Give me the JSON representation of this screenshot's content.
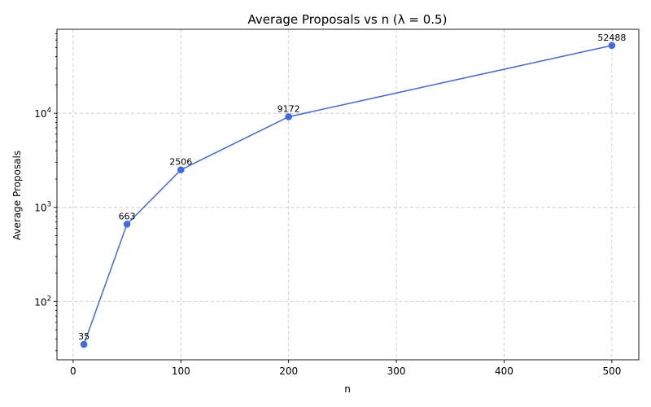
{
  "chart_data": {
    "type": "line",
    "title": "Average Proposals vs n (λ = 0.5)",
    "xlabel": "n",
    "ylabel": "Average Proposals",
    "y_scale": "log",
    "x": [
      10,
      50,
      100,
      200,
      500
    ],
    "series": [
      {
        "values": [
          35,
          663,
          2506,
          9172,
          52488
        ],
        "labels": [
          "35",
          "663",
          "2506",
          "9172",
          "52488"
        ],
        "color": "#4169e1",
        "marker": "circle"
      }
    ],
    "xlim": [
      -15,
      525
    ],
    "ylim": [
      24,
      78000
    ],
    "x_ticks": [
      0,
      100,
      200,
      300,
      400,
      500
    ],
    "x_tick_labels": [
      "0",
      "100",
      "200",
      "300",
      "400",
      "500"
    ],
    "y_ticks": [
      100,
      1000,
      10000
    ],
    "y_tick_labels": [
      {
        "base": "10",
        "exp": "2"
      },
      {
        "base": "10",
        "exp": "3"
      },
      {
        "base": "10",
        "exp": "4"
      }
    ],
    "grid": true
  }
}
